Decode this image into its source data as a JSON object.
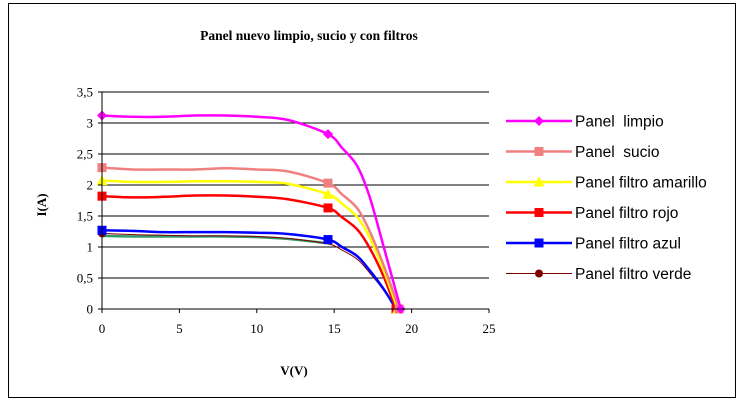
{
  "chart_data": {
    "type": "line",
    "title": "Panel nuevo limpio, sucio y con filtros",
    "xlabel": "V(V)",
    "ylabel": "I(A)",
    "xlim": [
      0,
      25
    ],
    "ylim": [
      0,
      3.5
    ],
    "x_ticks": [
      "0",
      "5",
      "10",
      "15",
      "20",
      "25"
    ],
    "y_ticks": [
      "0",
      "0,5",
      "1",
      "1,5",
      "2",
      "2,5",
      "3",
      "3,5"
    ],
    "grid": "horizontal",
    "legend_position": "right",
    "series": [
      {
        "name": "Panel  limpio",
        "color": "#ff00ff",
        "marker": "diamond",
        "marked_points": [
          [
            0,
            3.12
          ],
          [
            14.6,
            2.82
          ],
          [
            19.3,
            0
          ]
        ],
        "x": [
          0,
          2,
          4,
          6,
          8,
          10,
          12,
          14.6,
          15.5,
          16.5,
          17.3,
          18.2,
          19.3
        ],
        "y": [
          3.12,
          3.1,
          3.1,
          3.12,
          3.12,
          3.1,
          3.05,
          2.82,
          2.6,
          2.3,
          1.8,
          1.0,
          0
        ]
      },
      {
        "name": "Panel  sucio",
        "color": "#f08080",
        "marker": "square",
        "marked_points": [
          [
            0,
            2.28
          ],
          [
            14.6,
            2.03
          ],
          [
            19.2,
            0
          ]
        ],
        "x": [
          0,
          2,
          4,
          6,
          8,
          10,
          12,
          14.6,
          15.5,
          16.5,
          17.3,
          18.2,
          19.2
        ],
        "y": [
          2.28,
          2.25,
          2.25,
          2.25,
          2.27,
          2.25,
          2.22,
          2.03,
          1.85,
          1.62,
          1.25,
          0.7,
          0
        ]
      },
      {
        "name": "Panel filtro amarillo",
        "color": "#ffff00",
        "marker": "triangle",
        "marked_points": [
          [
            0,
            2.07
          ],
          [
            14.6,
            1.85
          ],
          [
            19.1,
            0
          ]
        ],
        "x": [
          0,
          2,
          4,
          6,
          8,
          10,
          12,
          14.6,
          15.5,
          16.5,
          17.3,
          18.2,
          19.1
        ],
        "y": [
          2.07,
          2.05,
          2.05,
          2.06,
          2.06,
          2.05,
          2.02,
          1.85,
          1.7,
          1.48,
          1.15,
          0.62,
          0
        ]
      },
      {
        "name": "Panel filtro rojo",
        "color": "#ff0000",
        "marker": "square",
        "marked_points": [
          [
            0,
            1.82
          ],
          [
            14.6,
            1.63
          ],
          [
            19.0,
            0
          ]
        ],
        "x": [
          0,
          2,
          4,
          6,
          8,
          10,
          12,
          14.6,
          15.5,
          16.5,
          17.3,
          18.2,
          19.0
        ],
        "y": [
          1.82,
          1.8,
          1.81,
          1.83,
          1.83,
          1.81,
          1.77,
          1.63,
          1.48,
          1.28,
          0.98,
          0.52,
          0
        ]
      },
      {
        "name": "Panel filtro azul",
        "color": "#0000ff",
        "marker": "square",
        "marked_points": [
          [
            0,
            1.27
          ],
          [
            14.6,
            1.12
          ],
          [
            19.0,
            0
          ]
        ],
        "x": [
          0,
          2,
          4,
          6,
          8,
          10,
          12,
          14.6,
          15.5,
          16.5,
          17.3,
          18.2,
          19.0
        ],
        "y": [
          1.27,
          1.26,
          1.24,
          1.24,
          1.24,
          1.23,
          1.21,
          1.12,
          1.0,
          0.85,
          0.62,
          0.32,
          0
        ]
      },
      {
        "name": "Panel filtro verde",
        "color": "#800000",
        "marker": "circle",
        "marked_points": [
          [
            0,
            1.22
          ],
          [
            19.0,
            0
          ]
        ],
        "x": [
          0,
          2,
          4,
          6,
          8,
          10,
          12,
          14.6,
          15.5,
          16.5,
          17.3,
          18.2,
          19.0
        ],
        "y": [
          1.22,
          1.2,
          1.19,
          1.18,
          1.18,
          1.17,
          1.14,
          1.05,
          0.95,
          0.8,
          0.58,
          0.3,
          0
        ]
      },
      {
        "name": "",
        "color": "#339966",
        "marker": "none",
        "marked_points": [],
        "x": [
          0,
          2,
          4,
          6,
          8,
          10,
          12,
          14.6
        ],
        "y": [
          1.18,
          1.17,
          1.17,
          1.17,
          1.17,
          1.16,
          1.13,
          1.06
        ]
      }
    ]
  }
}
